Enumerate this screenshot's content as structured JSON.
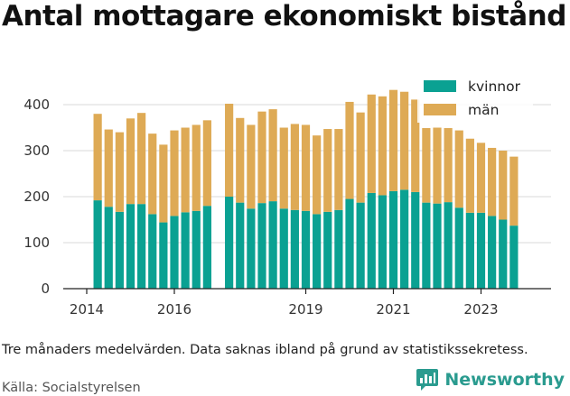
{
  "title": "Antal mottagare ekonomiskt bistånd",
  "note": "Tre månaders medelvärden. Data saknas ibland på grund av statistikssekretess.",
  "source": "Källa: Socialstyrelsen",
  "brand": {
    "name": "Newsworthy",
    "icon": "newsworthy-logo-icon",
    "color": "#2a9b8f"
  },
  "chart_data": {
    "type": "bar",
    "stacked": true,
    "x_ticks": [
      "2014",
      "2016",
      "2019",
      "2021",
      "2023"
    ],
    "y_ticks": [
      0,
      100,
      200,
      300,
      400
    ],
    "ylim": [
      0,
      420
    ],
    "grid": "horizontal",
    "legend_position": "top-right",
    "colors": {
      "kvinnor": "#0aa192",
      "män": "#deaa55"
    },
    "periods": [
      "2014-04",
      "2014-07",
      "2014-10",
      "2015-01",
      "2015-04",
      "2015-07",
      "2015-10",
      "2016-01",
      "2016-04",
      "2016-07",
      "2016-10",
      "2017-04",
      "2017-07",
      "2017-10",
      "2018-01",
      "2018-04",
      "2018-07",
      "2018-10",
      "2019-01",
      "2019-04",
      "2019-07",
      "2019-10",
      "2020-01",
      "2020-04",
      "2020-07",
      "2020-10",
      "2021-01",
      "2021-04",
      "2021-07",
      "2021-10",
      "2022-01",
      "2022-04",
      "2022-07",
      "2022-10",
      "2023-01",
      "2023-04",
      "2023-07",
      "2023-10"
    ],
    "series": [
      {
        "name": "kvinnor",
        "values": [
          192,
          178,
          167,
          184,
          184,
          162,
          144,
          158,
          166,
          169,
          180,
          200,
          187,
          174,
          186,
          190,
          174,
          171,
          169,
          162,
          167,
          171,
          195,
          187,
          208,
          203,
          212,
          215,
          210,
          187,
          185,
          188,
          176,
          165,
          165,
          158,
          150,
          137
        ]
      },
      {
        "name": "män",
        "values": [
          188,
          168,
          173,
          186,
          198,
          175,
          169,
          186,
          184,
          187,
          186,
          202,
          184,
          182,
          199,
          200,
          176,
          187,
          187,
          171,
          180,
          176,
          211,
          196,
          214,
          215,
          220,
          213,
          201,
          162,
          165,
          161,
          168,
          161,
          152,
          148,
          150,
          150
        ]
      }
    ]
  }
}
